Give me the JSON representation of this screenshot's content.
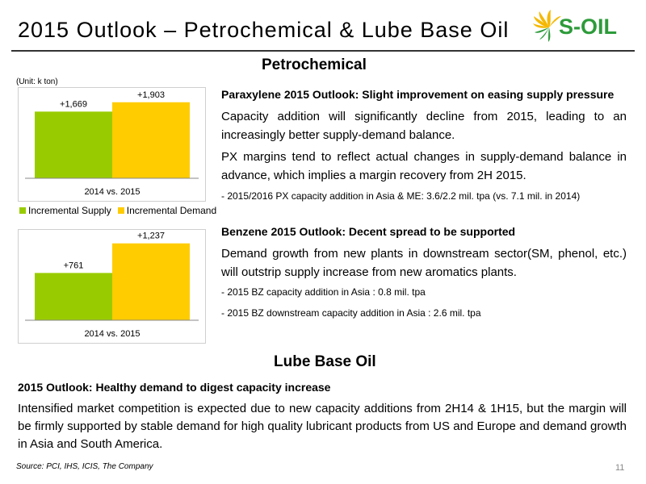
{
  "header": {
    "title": "2015 Outlook – Petrochemical & Lube Base Oil",
    "logo_text": "S-OIL"
  },
  "petrochemical": {
    "heading": "Petrochemical",
    "unit": "(Unit: k ton)",
    "legend": [
      "Incremental Supply",
      "Incremental Demand"
    ],
    "px": {
      "title": "Paraxylene 2015 Outlook: Slight improvement on easing supply pressure",
      "p1": "Capacity addition will significantly decline from 2015, leading to an increasingly better supply-demand balance.",
      "p2": "PX margins tend to reflect actual changes in supply-demand balance in advance, which implies a margin recovery from 2H 2015.",
      "bullet1": "- 2015/2016 PX capacity addition in Asia & ME: 3.6/2.2 mil. tpa  (vs. 7.1 mil. in 2014)"
    },
    "bz": {
      "title": "Benzene 2015 Outlook: Decent spread to be supported",
      "p1": "Demand growth from new plants in downstream sector(SM, phenol, etc.)  will outstrip supply increase from new aromatics plants.",
      "bullet1": "- 2015 BZ capacity addition in Asia : 0.8 mil. tpa",
      "bullet2": "- 2015 BZ downstream capacity addition in Asia : 2.6 mil. tpa"
    }
  },
  "lube": {
    "heading": "Lube Base Oil",
    "title": "2015 Outlook: Healthy demand to digest capacity increase",
    "p1": "Intensified market competition is expected due to new capacity additions from 2H14 & 1H15, but the margin will be firmly supported by stable demand for high quality lubricant products from US and Europe and demand growth in Asia and South America."
  },
  "footer": {
    "source": "Source: PCI, IHS, ICIS, The Company",
    "page": "11"
  },
  "colors": {
    "supply": "#99cc00",
    "demand": "#ffcc00",
    "logo_green": "#2d9b3a",
    "logo_yellow": "#f5b800"
  },
  "chart_data": [
    {
      "type": "bar",
      "categories": [
        "2014 vs. 2015"
      ],
      "series": [
        {
          "name": "Incremental Supply",
          "values": [
            1669
          ],
          "labels": [
            "+1,669"
          ]
        },
        {
          "name": "Incremental Demand",
          "values": [
            1903
          ],
          "labels": [
            "+1,903"
          ]
        }
      ],
      "ylim": [
        0,
        2100
      ],
      "legend": "bottom",
      "grid": false
    },
    {
      "type": "bar",
      "categories": [
        "2014 vs. 2015"
      ],
      "series": [
        {
          "name": "Incremental Supply",
          "values": [
            761
          ],
          "labels": [
            "+761"
          ]
        },
        {
          "name": "Incremental Demand",
          "values": [
            1237
          ],
          "labels": [
            "+1,237"
          ]
        }
      ],
      "ylim": [
        0,
        1350
      ],
      "grid": false
    }
  ]
}
